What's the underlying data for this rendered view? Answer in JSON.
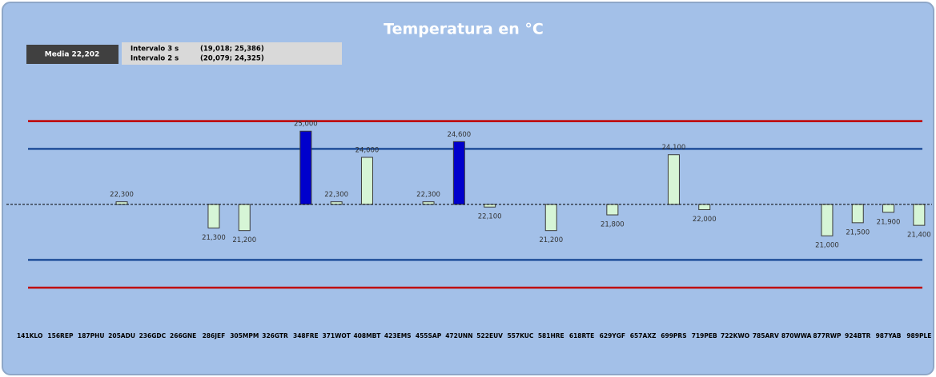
{
  "chart_data": {
    "type": "bar",
    "title": "Temperatura en °C",
    "mean": {
      "value": 22.202,
      "label": "Media 22,202",
      "color": "#000000"
    },
    "intervals": [
      {
        "name": "Intervalo 3 s",
        "low": 19.018,
        "high": 25.386,
        "label": "(19,018; 25,386)",
        "color": "#c00000"
      },
      {
        "name": "Intervalo 2 s",
        "low": 20.079,
        "high": 24.325,
        "label": "(20,079; 24,325)",
        "color": "#1f4e99"
      }
    ],
    "categories": [
      "141KLO",
      "156REP",
      "187PHU",
      "205ADU",
      "236GDC",
      "266GNE",
      "286JEF",
      "305MPM",
      "326GTR",
      "348FRE",
      "371WOT",
      "408MBT",
      "423EMS",
      "455SAP",
      "472UNN",
      "522EUV",
      "557KUC",
      "581HRE",
      "618RTE",
      "629YGF",
      "657AXZ",
      "699PRS",
      "719PEB",
      "722KWO",
      "785ARV",
      "870WWA",
      "877RWP",
      "924BTR",
      "987YAB",
      "989PLE"
    ],
    "values": [
      null,
      null,
      null,
      22.3,
      null,
      null,
      21.3,
      21.2,
      null,
      25.0,
      22.3,
      24.0,
      null,
      22.3,
      24.6,
      22.1,
      null,
      21.2,
      null,
      21.8,
      null,
      24.1,
      22.0,
      null,
      null,
      null,
      21.0,
      21.5,
      21.9,
      21.4
    ],
    "value_labels": [
      null,
      null,
      null,
      "22,300",
      null,
      null,
      "21,300",
      "21,200",
      null,
      "25,000",
      "22,300",
      "24,000",
      null,
      "22,300",
      "24,600",
      "22,100",
      null,
      "21,200",
      null,
      "21,800",
      null,
      "24,100",
      "22,000",
      null,
      null,
      null,
      "21,000",
      "21,500",
      "21,900",
      "21,400"
    ],
    "colors": [
      null,
      null,
      null,
      "#d6f5d6",
      null,
      null,
      "#d6f5d6",
      "#d6f5d6",
      null,
      "#0000cc",
      "#d6f5d6",
      "#d6f5d6",
      null,
      "#d6f5d6",
      "#0000cc",
      "#d6f5d6",
      null,
      "#d6f5d6",
      null,
      "#d6f5d6",
      null,
      "#d6f5d6",
      "#d6f5d6",
      null,
      null,
      null,
      "#d6f5d6",
      "#d6f5d6",
      "#d6f5d6",
      "#d6f5d6"
    ],
    "ylim": [
      17.8,
      29.1
    ]
  }
}
